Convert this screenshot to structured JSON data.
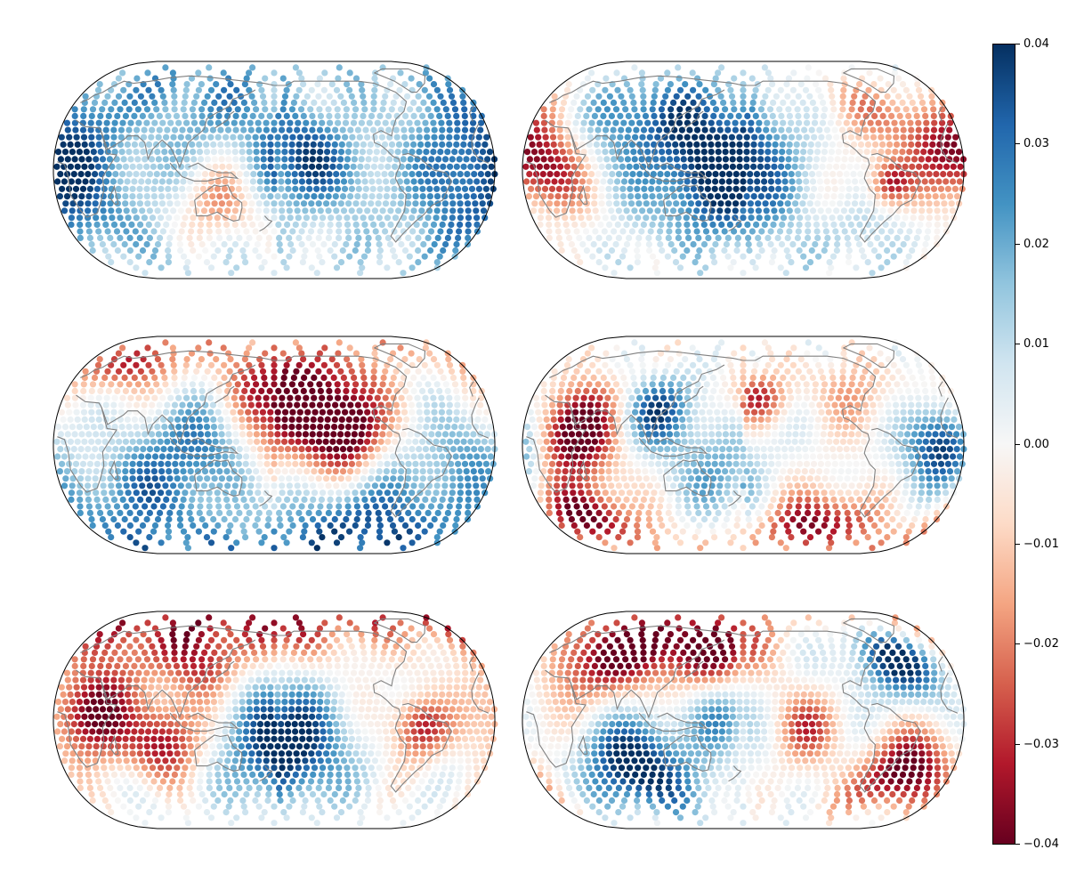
{
  "colormap": {
    "name": "RdBu",
    "stops": [
      "#67001f",
      "#b2182b",
      "#d6604d",
      "#f4a582",
      "#fddbc7",
      "#f7f7f7",
      "#d1e5f0",
      "#92c5de",
      "#4393c3",
      "#2166ac",
      "#053061"
    ],
    "vmin": -0.04,
    "vmax": 0.04
  },
  "coastline_color": "#808080",
  "colorbar_ticks": [
    {
      "value": 0.04,
      "label": "0.04"
    },
    {
      "value": 0.03,
      "label": "0.03"
    },
    {
      "value": 0.02,
      "label": "0.02"
    },
    {
      "value": 0.01,
      "label": "0.01"
    },
    {
      "value": 0.0,
      "label": "0.00"
    },
    {
      "value": -0.01,
      "label": "−0.01"
    },
    {
      "value": -0.02,
      "label": "−0.02"
    },
    {
      "value": -0.03,
      "label": "−0.03"
    },
    {
      "value": -0.04,
      "label": "−0.04"
    }
  ],
  "maps": [
    {
      "central_longitude": 180,
      "anomalies": [
        {
          "lon": 0,
          "lat": 0,
          "value": 0.04,
          "spread": 50
        },
        {
          "lon": 110,
          "lat": 50,
          "value": 0.025,
          "spread": 30
        },
        {
          "lon": 135,
          "lat": -25,
          "value": -0.02,
          "spread": 20
        },
        {
          "lon": 80,
          "lat": 40,
          "value": -0.012,
          "spread": 22
        },
        {
          "lon": -160,
          "lat": 10,
          "value": 0.035,
          "spread": 28
        },
        {
          "lon": -110,
          "lat": -5,
          "value": 0.01,
          "spread": 20
        },
        {
          "lon": -150,
          "lat": -55,
          "value": 0.005,
          "spread": 25
        }
      ]
    },
    {
      "central_longitude": 180,
      "anomalies": [
        {
          "lon": 160,
          "lat": 5,
          "value": 0.045,
          "spread": 45
        },
        {
          "lon": 80,
          "lat": 40,
          "value": 0.02,
          "spread": 25
        },
        {
          "lon": 20,
          "lat": 0,
          "value": -0.035,
          "spread": 22
        },
        {
          "lon": -60,
          "lat": -10,
          "value": -0.035,
          "spread": 12
        },
        {
          "lon": -20,
          "lat": 20,
          "value": -0.03,
          "spread": 22
        },
        {
          "lon": -80,
          "lat": 50,
          "value": -0.015,
          "spread": 25
        },
        {
          "lon": -70,
          "lat": -50,
          "value": 0.01,
          "spread": 20
        }
      ]
    },
    {
      "central_longitude": 180,
      "anomalies": [
        {
          "lon": -160,
          "lat": 35,
          "value": -0.045,
          "spread": 35
        },
        {
          "lon": -120,
          "lat": 10,
          "value": -0.035,
          "spread": 20
        },
        {
          "lon": 40,
          "lat": 60,
          "value": -0.03,
          "spread": 15
        },
        {
          "lon": 120,
          "lat": 0,
          "value": 0.03,
          "spread": 28
        },
        {
          "lon": -100,
          "lat": -65,
          "value": 0.035,
          "spread": 30
        },
        {
          "lon": -30,
          "lat": -10,
          "value": 0.02,
          "spread": 25
        },
        {
          "lon": 60,
          "lat": -40,
          "value": 0.025,
          "spread": 30
        }
      ]
    },
    {
      "central_longitude": 180,
      "anomalies": [
        {
          "lon": 40,
          "lat": 10,
          "value": -0.05,
          "spread": 25
        },
        {
          "lon": 40,
          "lat": -55,
          "value": -0.04,
          "spread": 18
        },
        {
          "lon": -110,
          "lat": -60,
          "value": -0.04,
          "spread": 18
        },
        {
          "lon": -165,
          "lat": 35,
          "value": -0.03,
          "spread": 14
        },
        {
          "lon": 110,
          "lat": 25,
          "value": 0.035,
          "spread": 20
        },
        {
          "lon": -15,
          "lat": 0,
          "value": 0.045,
          "spread": 22
        },
        {
          "lon": 160,
          "lat": -20,
          "value": 0.02,
          "spread": 25
        },
        {
          "lon": -80,
          "lat": 40,
          "value": -0.015,
          "spread": 20
        }
      ]
    },
    {
      "central_longitude": 180,
      "anomalies": [
        {
          "lon": -170,
          "lat": -20,
          "value": 0.045,
          "spread": 32
        },
        {
          "lon": 30,
          "lat": 5,
          "value": -0.04,
          "spread": 25
        },
        {
          "lon": 90,
          "lat": -15,
          "value": -0.035,
          "spread": 20
        },
        {
          "lon": -60,
          "lat": -5,
          "value": -0.035,
          "spread": 16
        },
        {
          "lon": 120,
          "lat": 40,
          "value": -0.025,
          "spread": 18
        },
        {
          "lon": 60,
          "lat": 75,
          "value": -0.03,
          "spread": 25
        },
        {
          "lon": -150,
          "lat": 65,
          "value": -0.015,
          "spread": 20
        }
      ]
    },
    {
      "central_longitude": 180,
      "anomalies": [
        {
          "lon": 60,
          "lat": 55,
          "value": -0.045,
          "spread": 28
        },
        {
          "lon": 150,
          "lat": 50,
          "value": -0.035,
          "spread": 20
        },
        {
          "lon": 90,
          "lat": -35,
          "value": 0.045,
          "spread": 28
        },
        {
          "lon": -40,
          "lat": 45,
          "value": 0.045,
          "spread": 22
        },
        {
          "lon": -40,
          "lat": -40,
          "value": -0.045,
          "spread": 22
        },
        {
          "lon": -130,
          "lat": -5,
          "value": -0.025,
          "spread": 18
        },
        {
          "lon": 160,
          "lat": 5,
          "value": 0.02,
          "spread": 20
        }
      ]
    }
  ]
}
